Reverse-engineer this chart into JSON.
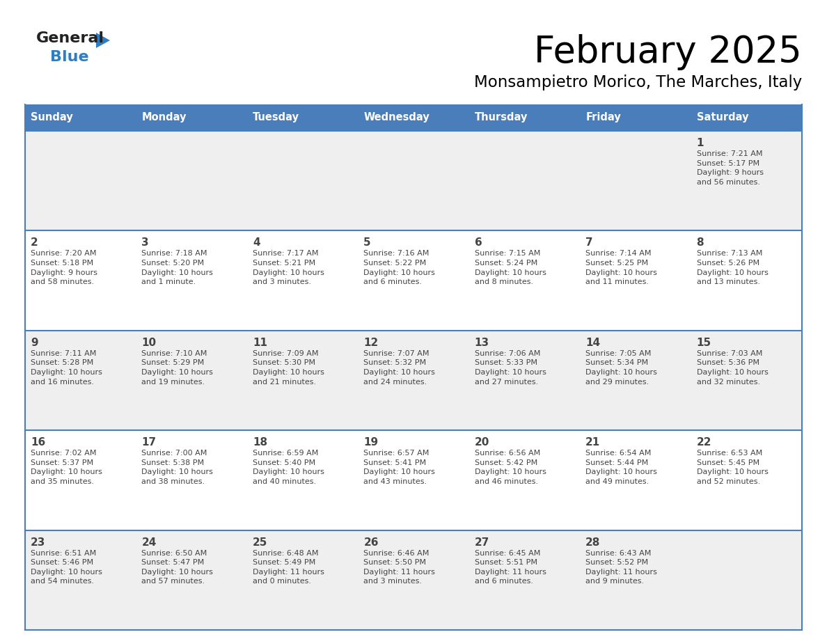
{
  "title": "February 2025",
  "subtitle": "Monsampietro Morico, The Marches, Italy",
  "header_bg": "#4A7EBB",
  "header_text_color": "#FFFFFF",
  "cell_bg_light": "#EFEFEF",
  "cell_bg_white": "#FFFFFF",
  "border_color": "#4A7EBB",
  "text_color": "#444444",
  "days_of_week": [
    "Sunday",
    "Monday",
    "Tuesday",
    "Wednesday",
    "Thursday",
    "Friday",
    "Saturday"
  ],
  "weeks": [
    [
      {
        "day": "",
        "info": ""
      },
      {
        "day": "",
        "info": ""
      },
      {
        "day": "",
        "info": ""
      },
      {
        "day": "",
        "info": ""
      },
      {
        "day": "",
        "info": ""
      },
      {
        "day": "",
        "info": ""
      },
      {
        "day": "1",
        "info": "Sunrise: 7:21 AM\nSunset: 5:17 PM\nDaylight: 9 hours\nand 56 minutes."
      }
    ],
    [
      {
        "day": "2",
        "info": "Sunrise: 7:20 AM\nSunset: 5:18 PM\nDaylight: 9 hours\nand 58 minutes."
      },
      {
        "day": "3",
        "info": "Sunrise: 7:18 AM\nSunset: 5:20 PM\nDaylight: 10 hours\nand 1 minute."
      },
      {
        "day": "4",
        "info": "Sunrise: 7:17 AM\nSunset: 5:21 PM\nDaylight: 10 hours\nand 3 minutes."
      },
      {
        "day": "5",
        "info": "Sunrise: 7:16 AM\nSunset: 5:22 PM\nDaylight: 10 hours\nand 6 minutes."
      },
      {
        "day": "6",
        "info": "Sunrise: 7:15 AM\nSunset: 5:24 PM\nDaylight: 10 hours\nand 8 minutes."
      },
      {
        "day": "7",
        "info": "Sunrise: 7:14 AM\nSunset: 5:25 PM\nDaylight: 10 hours\nand 11 minutes."
      },
      {
        "day": "8",
        "info": "Sunrise: 7:13 AM\nSunset: 5:26 PM\nDaylight: 10 hours\nand 13 minutes."
      }
    ],
    [
      {
        "day": "9",
        "info": "Sunrise: 7:11 AM\nSunset: 5:28 PM\nDaylight: 10 hours\nand 16 minutes."
      },
      {
        "day": "10",
        "info": "Sunrise: 7:10 AM\nSunset: 5:29 PM\nDaylight: 10 hours\nand 19 minutes."
      },
      {
        "day": "11",
        "info": "Sunrise: 7:09 AM\nSunset: 5:30 PM\nDaylight: 10 hours\nand 21 minutes."
      },
      {
        "day": "12",
        "info": "Sunrise: 7:07 AM\nSunset: 5:32 PM\nDaylight: 10 hours\nand 24 minutes."
      },
      {
        "day": "13",
        "info": "Sunrise: 7:06 AM\nSunset: 5:33 PM\nDaylight: 10 hours\nand 27 minutes."
      },
      {
        "day": "14",
        "info": "Sunrise: 7:05 AM\nSunset: 5:34 PM\nDaylight: 10 hours\nand 29 minutes."
      },
      {
        "day": "15",
        "info": "Sunrise: 7:03 AM\nSunset: 5:36 PM\nDaylight: 10 hours\nand 32 minutes."
      }
    ],
    [
      {
        "day": "16",
        "info": "Sunrise: 7:02 AM\nSunset: 5:37 PM\nDaylight: 10 hours\nand 35 minutes."
      },
      {
        "day": "17",
        "info": "Sunrise: 7:00 AM\nSunset: 5:38 PM\nDaylight: 10 hours\nand 38 minutes."
      },
      {
        "day": "18",
        "info": "Sunrise: 6:59 AM\nSunset: 5:40 PM\nDaylight: 10 hours\nand 40 minutes."
      },
      {
        "day": "19",
        "info": "Sunrise: 6:57 AM\nSunset: 5:41 PM\nDaylight: 10 hours\nand 43 minutes."
      },
      {
        "day": "20",
        "info": "Sunrise: 6:56 AM\nSunset: 5:42 PM\nDaylight: 10 hours\nand 46 minutes."
      },
      {
        "day": "21",
        "info": "Sunrise: 6:54 AM\nSunset: 5:44 PM\nDaylight: 10 hours\nand 49 minutes."
      },
      {
        "day": "22",
        "info": "Sunrise: 6:53 AM\nSunset: 5:45 PM\nDaylight: 10 hours\nand 52 minutes."
      }
    ],
    [
      {
        "day": "23",
        "info": "Sunrise: 6:51 AM\nSunset: 5:46 PM\nDaylight: 10 hours\nand 54 minutes."
      },
      {
        "day": "24",
        "info": "Sunrise: 6:50 AM\nSunset: 5:47 PM\nDaylight: 10 hours\nand 57 minutes."
      },
      {
        "day": "25",
        "info": "Sunrise: 6:48 AM\nSunset: 5:49 PM\nDaylight: 11 hours\nand 0 minutes."
      },
      {
        "day": "26",
        "info": "Sunrise: 6:46 AM\nSunset: 5:50 PM\nDaylight: 11 hours\nand 3 minutes."
      },
      {
        "day": "27",
        "info": "Sunrise: 6:45 AM\nSunset: 5:51 PM\nDaylight: 11 hours\nand 6 minutes."
      },
      {
        "day": "28",
        "info": "Sunrise: 6:43 AM\nSunset: 5:52 PM\nDaylight: 11 hours\nand 9 minutes."
      },
      {
        "day": "",
        "info": ""
      }
    ]
  ],
  "logo_text_general": "General",
  "logo_text_blue": "Blue",
  "logo_color_general": "#222222",
  "logo_color_blue": "#2E7EC6",
  "logo_triangle_color": "#2E7EC6"
}
